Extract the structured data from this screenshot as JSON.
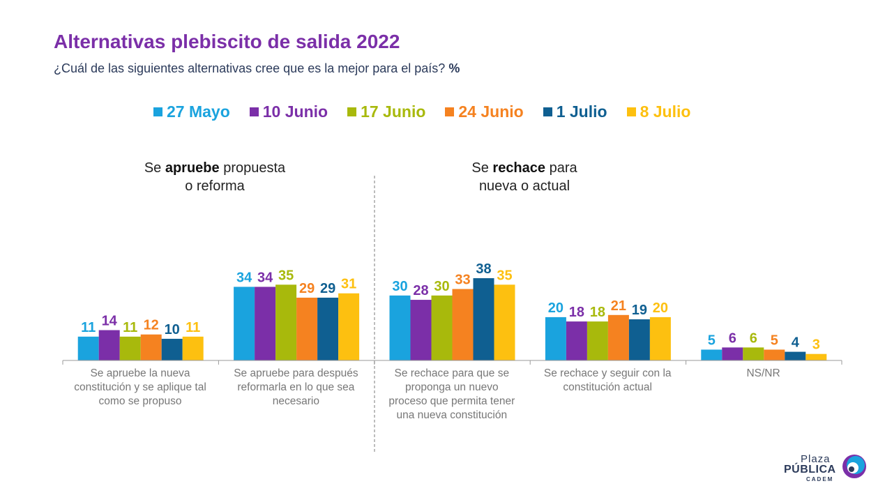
{
  "header": {
    "title": "Alternativas plebiscito de salida 2022",
    "subtitle": "¿Cuál de las siguientes alternativas cree que es la mejor para el país?",
    "unit": "%"
  },
  "groups": [
    {
      "pre": "Se ",
      "bold": "apruebe",
      "post": " propuesta",
      "line2": "o reforma"
    },
    {
      "pre": "Se ",
      "bold": "rechace",
      "post": " para",
      "line2": "nueva o actual"
    }
  ],
  "logo": {
    "plaza": "Plaza",
    "publica": "PÚBLICA",
    "cadem": "CADEM"
  },
  "chart_data": {
    "type": "bar",
    "categories": [
      "Se apruebe la nueva constitución y se aplique tal como se propuso",
      "Se apruebe para después reformarla en lo que sea necesario",
      "Se rechace para que se proponga un nuevo proceso que permita tener una nueva constitución",
      "Se rechace y seguir con la constitución actual",
      "NS/NR"
    ],
    "category_lines": [
      [
        "Se apruebe la nueva",
        "constitución y se aplique tal",
        "como se propuso"
      ],
      [
        "Se apruebe para después",
        "reformarla en lo que sea",
        "necesario"
      ],
      [
        "Se rechace para que se",
        "proponga un nuevo",
        "proceso que permita tener",
        "una nueva constitución"
      ],
      [
        "Se rechace y seguir con la",
        "constitución actual"
      ],
      [
        "NS/NR"
      ]
    ],
    "series": [
      {
        "name": "27 Mayo",
        "color": "#1aa3de",
        "values": [
          11,
          34,
          30,
          20,
          5
        ]
      },
      {
        "name": "10 Junio",
        "color": "#7b2fa8",
        "values": [
          14,
          34,
          28,
          18,
          6
        ]
      },
      {
        "name": "17 Junio",
        "color": "#a8b90c",
        "values": [
          11,
          35,
          30,
          18,
          6
        ]
      },
      {
        "name": "24 Junio",
        "color": "#f58220",
        "values": [
          12,
          29,
          33,
          21,
          5
        ]
      },
      {
        "name": "1 Julio",
        "color": "#0f5f91",
        "values": [
          10,
          29,
          38,
          19,
          4
        ]
      },
      {
        "name": "8 Julio",
        "color": "#fdc010",
        "values": [
          11,
          31,
          35,
          20,
          3
        ]
      }
    ],
    "ylim": [
      0,
      40
    ],
    "grid": false,
    "legend_position": "top-center",
    "data_labels": true
  }
}
